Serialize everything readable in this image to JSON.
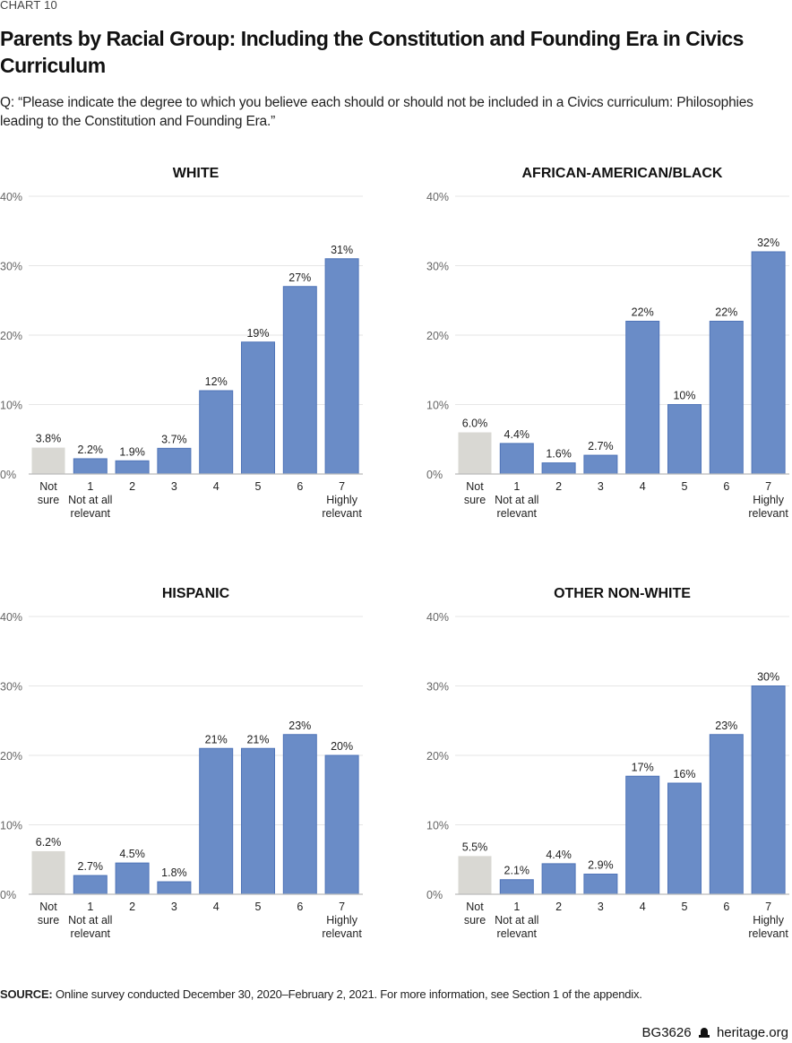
{
  "header": {
    "label": "CHART 10",
    "title": "Parents by Racial Group: Including the Constitution and Founding Era in Civics Curriculum",
    "question": "Q: “Please indicate the degree to which you believe each should or should not be included in a Civics curriculum: Philosophies leading to the Constitution and Founding Era.”"
  },
  "colors": {
    "bar": "#6a8cc7",
    "bar_edge": "#4f74b8",
    "not_sure": "#d9d8d3",
    "grid": "#e6e6e6",
    "axis": "#bbbbbb"
  },
  "chart_data": [
    {
      "type": "bar",
      "title": "WHITE",
      "categories": [
        [
          "Not",
          "sure"
        ],
        [
          "1",
          "Not at all",
          "relevant"
        ],
        [
          "2"
        ],
        [
          "3"
        ],
        [
          "4"
        ],
        [
          "5"
        ],
        [
          "6"
        ],
        [
          "7",
          "Highly",
          "relevant"
        ]
      ],
      "values": [
        3.8,
        2.2,
        1.9,
        3.7,
        12,
        19,
        27,
        31
      ],
      "data_labels": [
        "3.8%",
        "2.2%",
        "1.9%",
        "3.7%",
        "12%",
        "19%",
        "27%",
        "31%"
      ],
      "yticks": [
        "0%",
        "10%",
        "20%",
        "30%",
        "40%"
      ],
      "ylim": [
        0,
        40
      ],
      "grid": true
    },
    {
      "type": "bar",
      "title": "AFRICAN-AMERICAN/BLACK",
      "categories": [
        [
          "Not",
          "sure"
        ],
        [
          "1",
          "Not at all",
          "relevant"
        ],
        [
          "2"
        ],
        [
          "3"
        ],
        [
          "4"
        ],
        [
          "5"
        ],
        [
          "6"
        ],
        [
          "7",
          "Highly",
          "relevant"
        ]
      ],
      "values": [
        6.0,
        4.4,
        1.6,
        2.7,
        22,
        10,
        22,
        32
      ],
      "data_labels": [
        "6.0%",
        "4.4%",
        "1.6%",
        "2.7%",
        "22%",
        "10%",
        "22%",
        "32%"
      ],
      "yticks": [
        "0%",
        "10%",
        "20%",
        "30%",
        "40%"
      ],
      "ylim": [
        0,
        40
      ],
      "grid": true
    },
    {
      "type": "bar",
      "title": "HISPANIC",
      "categories": [
        [
          "Not",
          "sure"
        ],
        [
          "1",
          "Not at all",
          "relevant"
        ],
        [
          "2"
        ],
        [
          "3"
        ],
        [
          "4"
        ],
        [
          "5"
        ],
        [
          "6"
        ],
        [
          "7",
          "Highly",
          "relevant"
        ]
      ],
      "values": [
        6.2,
        2.7,
        4.5,
        1.8,
        21,
        21,
        23,
        20
      ],
      "data_labels": [
        "6.2%",
        "2.7%",
        "4.5%",
        "1.8%",
        "21%",
        "21%",
        "23%",
        "20%"
      ],
      "yticks": [
        "0%",
        "10%",
        "20%",
        "30%",
        "40%"
      ],
      "ylim": [
        0,
        40
      ],
      "grid": true
    },
    {
      "type": "bar",
      "title": "OTHER NON-WHITE",
      "categories": [
        [
          "Not",
          "sure"
        ],
        [
          "1",
          "Not at all",
          "relevant"
        ],
        [
          "2"
        ],
        [
          "3"
        ],
        [
          "4"
        ],
        [
          "5"
        ],
        [
          "6"
        ],
        [
          "7",
          "Highly",
          "relevant"
        ]
      ],
      "values": [
        5.5,
        2.1,
        4.4,
        2.9,
        17,
        16,
        23,
        30
      ],
      "data_labels": [
        "5.5%",
        "2.1%",
        "4.4%",
        "2.9%",
        "17%",
        "16%",
        "23%",
        "30%"
      ],
      "yticks": [
        "0%",
        "10%",
        "20%",
        "30%",
        "40%"
      ],
      "ylim": [
        0,
        40
      ],
      "grid": true
    }
  ],
  "footer": {
    "source_label": "SOURCE:",
    "source_text": " Online survey conducted December 30, 2020–February 2, 2021. For more information, see Section 1 of the appendix.",
    "code": "BG3626",
    "logo_icon": "liberty-bell-icon",
    "site": "heritage.org"
  }
}
